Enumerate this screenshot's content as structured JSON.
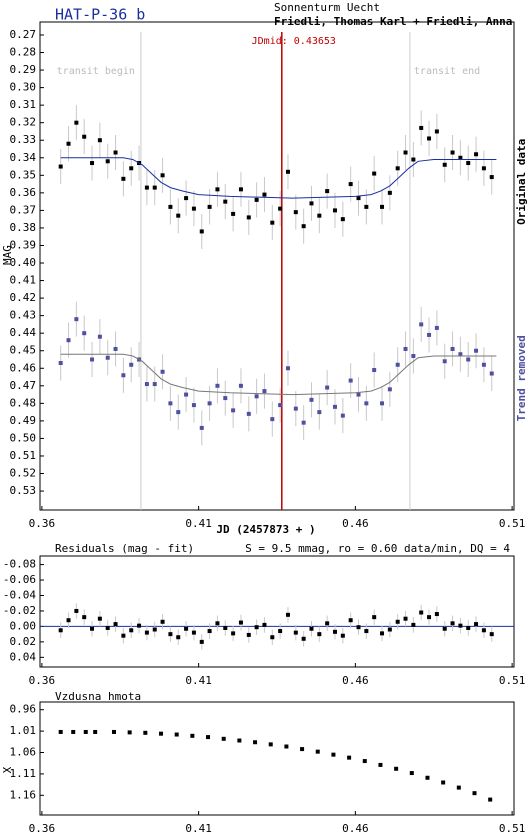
{
  "chart_data": [
    {
      "type": "scatter",
      "title": "HAT-P-36 b",
      "subtitle": "Sonnenturm Uecht",
      "observers": "Friedli, Thomas Karl + Friedli, Anna",
      "x_label": "JD (2457873 + )",
      "y_label": "MAG",
      "y_inverted": true,
      "xlim": [
        0.3594,
        0.5106
      ],
      "xticks": [
        0.36,
        0.41,
        0.46,
        0.51
      ],
      "ylim": [
        0.2626,
        0.5408
      ],
      "yticks": [
        0.27,
        0.28,
        0.29,
        {
          "value": 0.3,
          "label": "0.30"
        },
        0.31,
        0.32,
        0.33,
        0.34,
        0.35,
        0.36,
        0.37,
        0.38,
        0.39,
        {
          "value": 0.4,
          "label": "0.40"
        },
        0.41,
        0.42,
        0.43,
        0.44,
        0.45,
        0.46,
        0.47,
        0.48,
        0.49,
        {
          "value": 0.5,
          "label": "0.50"
        },
        0.51,
        0.52,
        0.53
      ],
      "markers": [
        {
          "label": "transit begin",
          "x": 0.3916,
          "color": "#cccccc"
        },
        {
          "label": "transit end",
          "x": 0.4774,
          "color": "#cccccc"
        },
        {
          "label": "JDmid: 0.43653",
          "x": 0.43653,
          "color": "#c00000"
        }
      ],
      "series": [
        {
          "name": "Original data",
          "color": "#000000",
          "error": 0.01,
          "x": [
            0.366,
            0.3685,
            0.371,
            0.3735,
            0.376,
            0.3785,
            0.381,
            0.3835,
            0.386,
            0.3885,
            0.391,
            0.3935,
            0.396,
            0.3985,
            0.401,
            0.4035,
            0.406,
            0.4085,
            0.411,
            0.4135,
            0.416,
            0.4185,
            0.421,
            0.4235,
            0.426,
            0.4285,
            0.431,
            0.4335,
            0.436,
            0.4385,
            0.441,
            0.4435,
            0.446,
            0.4485,
            0.451,
            0.4535,
            0.456,
            0.4585,
            0.461,
            0.4635,
            0.466,
            0.4685,
            0.471,
            0.4735,
            0.476,
            0.4785,
            0.481,
            0.4835,
            0.486,
            0.4885,
            0.491,
            0.4935,
            0.496,
            0.4985,
            0.501,
            0.5035
          ],
          "values": [
            0.345,
            0.332,
            0.32,
            0.328,
            0.343,
            0.33,
            0.342,
            0.337,
            0.352,
            0.346,
            0.343,
            0.357,
            0.357,
            0.35,
            0.368,
            0.373,
            0.363,
            0.369,
            0.382,
            0.368,
            0.358,
            0.365,
            0.372,
            0.358,
            0.374,
            0.364,
            0.361,
            0.377,
            0.369,
            0.348,
            0.371,
            0.379,
            0.366,
            0.373,
            0.359,
            0.37,
            0.375,
            0.355,
            0.363,
            0.368,
            0.349,
            0.368,
            0.36,
            0.346,
            0.337,
            0.341,
            0.323,
            0.329,
            0.325,
            0.344,
            0.337,
            0.34,
            0.343,
            0.338,
            0.346,
            0.351
          ]
        },
        {
          "name": "Trend removed",
          "color": "#5050a0",
          "error": 0.01,
          "x": [
            0.366,
            0.3685,
            0.371,
            0.3735,
            0.376,
            0.3785,
            0.381,
            0.3835,
            0.386,
            0.3885,
            0.391,
            0.3935,
            0.396,
            0.3985,
            0.401,
            0.4035,
            0.406,
            0.4085,
            0.411,
            0.4135,
            0.416,
            0.4185,
            0.421,
            0.4235,
            0.426,
            0.4285,
            0.431,
            0.4335,
            0.436,
            0.4385,
            0.441,
            0.4435,
            0.446,
            0.4485,
            0.451,
            0.4535,
            0.456,
            0.4585,
            0.461,
            0.4635,
            0.466,
            0.4685,
            0.471,
            0.4735,
            0.476,
            0.4785,
            0.481,
            0.4835,
            0.486,
            0.4885,
            0.491,
            0.4935,
            0.496,
            0.4985,
            0.501,
            0.5035
          ],
          "values": [
            0.457,
            0.444,
            0.432,
            0.44,
            0.455,
            0.442,
            0.454,
            0.449,
            0.464,
            0.458,
            0.455,
            0.469,
            0.469,
            0.462,
            0.48,
            0.485,
            0.475,
            0.481,
            0.494,
            0.48,
            0.47,
            0.477,
            0.484,
            0.47,
            0.486,
            0.476,
            0.473,
            0.489,
            0.481,
            0.46,
            0.483,
            0.491,
            0.478,
            0.485,
            0.471,
            0.482,
            0.487,
            0.467,
            0.475,
            0.48,
            0.461,
            0.48,
            0.472,
            0.458,
            0.449,
            0.453,
            0.435,
            0.441,
            0.437,
            0.456,
            0.449,
            0.452,
            0.455,
            0.45,
            0.458,
            0.463
          ]
        },
        {
          "type": "line",
          "color": "#1a2fa0",
          "x": [
            0.366,
            0.386,
            0.389,
            0.392,
            0.395,
            0.398,
            0.401,
            0.405,
            0.41,
            0.42,
            0.44,
            0.46,
            0.465,
            0.468,
            0.471,
            0.474,
            0.477,
            0.48,
            0.485,
            0.505
          ],
          "values": [
            0.34,
            0.34,
            0.341,
            0.344,
            0.349,
            0.354,
            0.357,
            0.359,
            0.361,
            0.362,
            0.363,
            0.362,
            0.361,
            0.359,
            0.356,
            0.351,
            0.346,
            0.342,
            0.341,
            0.341
          ]
        },
        {
          "type": "line",
          "color": "#777777",
          "x": [
            0.366,
            0.386,
            0.389,
            0.392,
            0.395,
            0.398,
            0.401,
            0.405,
            0.41,
            0.42,
            0.44,
            0.46,
            0.465,
            0.468,
            0.471,
            0.474,
            0.477,
            0.48,
            0.485,
            0.505
          ],
          "values": [
            0.452,
            0.452,
            0.453,
            0.456,
            0.461,
            0.466,
            0.469,
            0.471,
            0.473,
            0.474,
            0.475,
            0.474,
            0.473,
            0.471,
            0.468,
            0.463,
            0.458,
            0.454,
            0.453,
            0.453
          ]
        }
      ]
    },
    {
      "type": "scatter",
      "title": "Residuals (mag - fit)",
      "annotation": "S = 9.5 mmag, ro = 0.60 data/min, DQ = 4",
      "y_inverted": true,
      "xlim": [
        0.3594,
        0.5106
      ],
      "xticks": [
        0.36,
        0.41,
        0.46,
        0.51
      ],
      "ylim": [
        -0.0911,
        0.0525
      ],
      "yticks": [
        -0.08,
        -0.06,
        -0.04,
        -0.02,
        {
          "value": 0,
          "label": "0.00"
        },
        0.02,
        0.04
      ],
      "reference_line": {
        "value": 0,
        "color": "#1a2fa0"
      },
      "series": [
        {
          "color": "#000000",
          "error": 0.01,
          "x": [
            0.366,
            0.3685,
            0.371,
            0.3735,
            0.376,
            0.3785,
            0.381,
            0.3835,
            0.386,
            0.3885,
            0.391,
            0.3935,
            0.396,
            0.3985,
            0.401,
            0.4035,
            0.406,
            0.4085,
            0.411,
            0.4135,
            0.416,
            0.4185,
            0.421,
            0.4235,
            0.426,
            0.4285,
            0.431,
            0.4335,
            0.436,
            0.4385,
            0.441,
            0.4435,
            0.446,
            0.4485,
            0.451,
            0.4535,
            0.456,
            0.4585,
            0.461,
            0.4635,
            0.466,
            0.4685,
            0.471,
            0.4735,
            0.476,
            0.4785,
            0.481,
            0.4835,
            0.486,
            0.4885,
            0.491,
            0.4935,
            0.496,
            0.4985,
            0.501,
            0.5035
          ],
          "values": [
            0.005,
            -0.008,
            -0.02,
            -0.012,
            0.003,
            -0.01,
            0.002,
            -0.003,
            0.012,
            0.005,
            -0.001,
            0.008,
            0.004,
            -0.006,
            0.01,
            0.014,
            0.003,
            0.008,
            0.02,
            0.006,
            -0.004,
            0.002,
            0.009,
            -0.005,
            0.011,
            0.001,
            -0.002,
            0.014,
            0.006,
            -0.015,
            0.008,
            0.016,
            0.003,
            0.01,
            -0.004,
            0.007,
            0.012,
            -0.008,
            0.001,
            0.006,
            -0.012,
            0.009,
            0.004,
            -0.006,
            -0.01,
            -0.002,
            -0.018,
            -0.012,
            -0.016,
            0.003,
            -0.004,
            -0.001,
            0.002,
            -0.003,
            0.005,
            0.01
          ]
        }
      ]
    },
    {
      "type": "scatter",
      "title": "Vzdusna hmota",
      "y_label": "X",
      "y_inverted": true,
      "xlim": [
        0.3594,
        0.5106
      ],
      "xticks": [
        0.36,
        0.41,
        0.46,
        0.51
      ],
      "ylim": [
        0.942,
        1.206
      ],
      "yticks": [
        0.96,
        1.01,
        1.06,
        1.11,
        1.16
      ],
      "series": [
        {
          "color": "#000000",
          "x": [
            0.366,
            0.37,
            0.374,
            0.377,
            0.383,
            0.388,
            0.393,
            0.398,
            0.403,
            0.408,
            0.413,
            0.418,
            0.423,
            0.428,
            0.433,
            0.438,
            0.443,
            0.448,
            0.453,
            0.458,
            0.463,
            0.468,
            0.473,
            0.478,
            0.483,
            0.488,
            0.493,
            0.498,
            0.503
          ],
          "values": [
            1.012,
            1.012,
            1.012,
            1.012,
            1.012,
            1.013,
            1.014,
            1.016,
            1.018,
            1.021,
            1.024,
            1.028,
            1.032,
            1.036,
            1.041,
            1.046,
            1.052,
            1.058,
            1.065,
            1.072,
            1.08,
            1.089,
            1.098,
            1.108,
            1.119,
            1.13,
            1.142,
            1.155,
            1.17
          ]
        }
      ]
    }
  ]
}
